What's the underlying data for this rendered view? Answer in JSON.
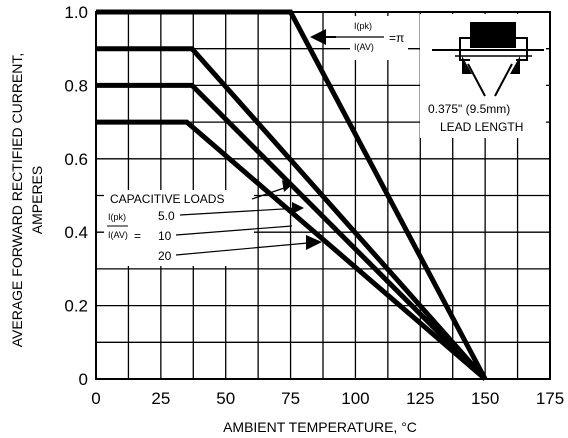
{
  "chart_data": {
    "type": "line",
    "xlabel": "AMBIENT TEMPERATURE, °C",
    "ylabel_lines": [
      "AVERAGE FORWARD RECTIFIED CURRENT,",
      "AMPERES"
    ],
    "xlim": [
      0,
      175
    ],
    "ylim": [
      0,
      1.0
    ],
    "x_ticks": [
      "0",
      "25",
      "50",
      "75",
      "100",
      "125",
      "150",
      "175"
    ],
    "y_ticks": [
      "0",
      "0.2",
      "0.4",
      "0.6",
      "0.8",
      "1.0"
    ],
    "x_grid_values": [
      0,
      12.5,
      25,
      37.5,
      50,
      62.5,
      75,
      87.5,
      100,
      112.5,
      125,
      137.5,
      150,
      162.5,
      175
    ],
    "y_grid_values": [
      0,
      0.1,
      0.2,
      0.3,
      0.4,
      0.5,
      0.6,
      0.7,
      0.8,
      0.9,
      1.0
    ],
    "grid": true,
    "series": [
      {
        "x": [
          0,
          75,
          150
        ],
        "y": [
          1.0,
          1.0,
          0
        ]
      },
      {
        "x": [
          0,
          37,
          150
        ],
        "y": [
          0.9,
          0.9,
          0
        ]
      },
      {
        "x": [
          0,
          37,
          150
        ],
        "y": [
          0.8,
          0.8,
          0
        ]
      },
      {
        "x": [
          0,
          35,
          150
        ],
        "y": [
          0.7,
          0.7,
          0
        ]
      }
    ],
    "annotations": {
      "resistive": {
        "num": "I(pk)",
        "den": "I(AV)",
        "eq": "=π"
      },
      "capacitive_title": "CAPACITIVE LOADS",
      "ratio_num": "I(pk)",
      "ratio_den": "I(AV)",
      "ratio_eq": "=",
      "ratio_values": [
        "5.0",
        "10",
        "20"
      ],
      "lead_length": [
        "0.375\" (9.5mm)",
        "LEAD LENGTH"
      ]
    }
  }
}
